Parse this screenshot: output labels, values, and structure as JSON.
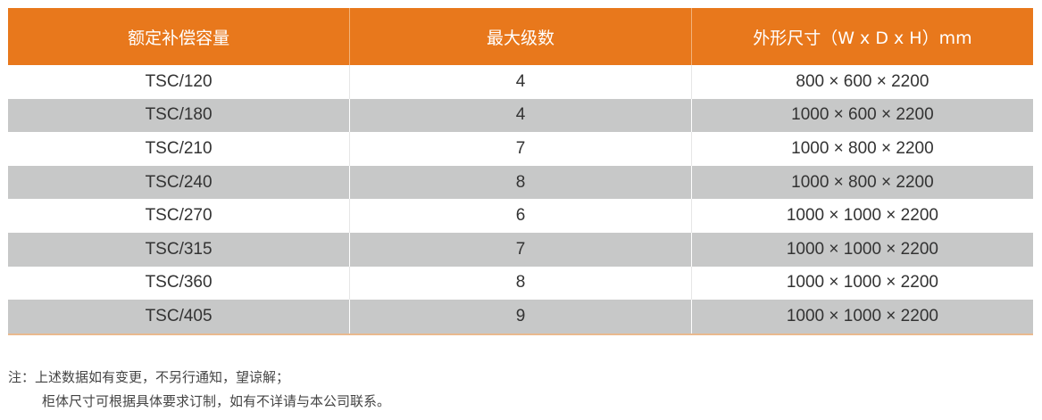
{
  "table": {
    "headers": [
      "额定补偿容量",
      "最大级数",
      "外形尺寸（W x D x H）mm"
    ],
    "rows": [
      [
        "TSC/120",
        "4",
        "800 × 600  × 2200"
      ],
      [
        "TSC/180",
        "4",
        "1000 × 600 × 2200"
      ],
      [
        "TSC/210",
        "7",
        "1000 × 800 × 2200"
      ],
      [
        "TSC/240",
        "8",
        "1000 × 800 × 2200"
      ],
      [
        "TSC/270",
        "6",
        "1000 × 1000  × 2200"
      ],
      [
        "TSC/315",
        "7",
        "1000 × 1000  × 2200"
      ],
      [
        "TSC/360",
        "8",
        "1000 × 1000  × 2200"
      ],
      [
        "TSC/405",
        "9",
        "1000 × 1000  × 2200"
      ]
    ]
  },
  "note": {
    "line1": "注：上述数据如有变更，不另行通知，望谅解；",
    "line2": "柜体尺寸可根据具体要求订制，如有不详请与本公司联系。"
  },
  "colors": {
    "header": "#e8781c",
    "stripe": "#c7c8c8"
  }
}
